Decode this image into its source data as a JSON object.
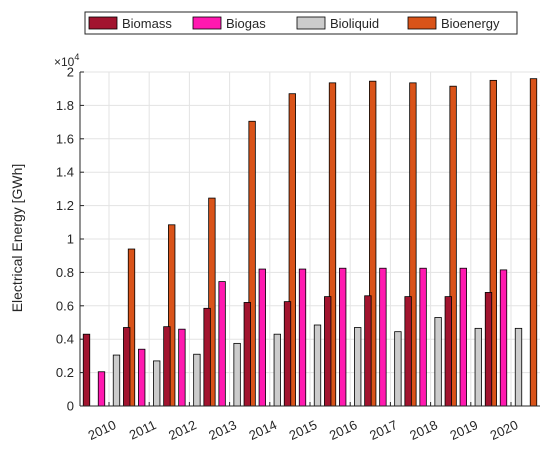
{
  "chart_data": {
    "type": "bar",
    "title": "",
    "xlabel": "",
    "ylabel": "Electrical Energy [GWh]",
    "y_exponent_label": "×10",
    "y_exponent_power": "4",
    "ylim": [
      0,
      2
    ],
    "yticks": [
      "0",
      "0.2",
      "0.4",
      "0.6",
      "0.8",
      "1",
      "1.2",
      "1.4",
      "1.6",
      "1.8",
      "2"
    ],
    "grid": true,
    "legend_position": "top",
    "categories": [
      "2010",
      "2011",
      "2012",
      "2013",
      "2014",
      "2015",
      "2016",
      "2017",
      "2018",
      "2019",
      "2020"
    ],
    "series": [
      {
        "name": "Biomass",
        "color": "#a2142f",
        "values": [
          0.43,
          0.47,
          0.475,
          0.585,
          0.62,
          0.625,
          0.655,
          0.66,
          0.655,
          0.655,
          0.68
        ]
      },
      {
        "name": "Biogas",
        "color": "#ff19b0",
        "values": [
          0.205,
          0.34,
          0.46,
          0.745,
          0.82,
          0.82,
          0.825,
          0.825,
          0.825,
          0.825,
          0.815
        ]
      },
      {
        "name": "Bioliquid",
        "color": "#cccccc",
        "values": [
          0.305,
          0.27,
          0.31,
          0.375,
          0.43,
          0.485,
          0.47,
          0.445,
          0.53,
          0.465,
          0.465
        ]
      },
      {
        "name": "Bioenergy",
        "color": "#d95319",
        "values": [
          0.94,
          1.085,
          1.245,
          1.705,
          1.87,
          1.935,
          1.945,
          1.935,
          1.915,
          1.95,
          1.96
        ]
      }
    ]
  }
}
